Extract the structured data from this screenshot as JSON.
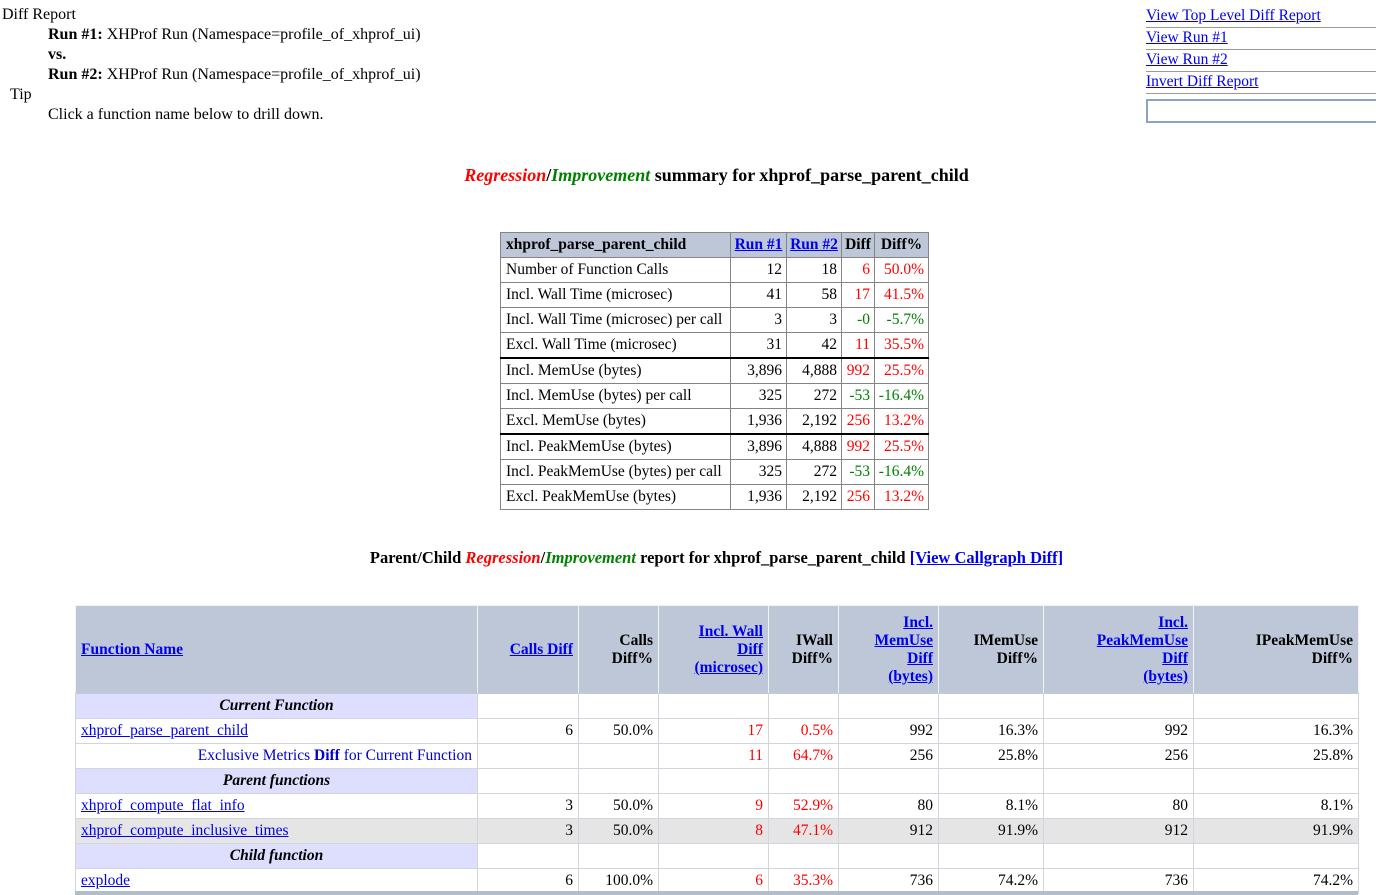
{
  "colors": {
    "link": "#0000EE",
    "red": "#FF0000",
    "green": "#008000",
    "header_bg": "#BDC7D8",
    "section_bg": "#DEDEFF",
    "shade_bg": "#E5E5E5"
  },
  "header": {
    "title": "Diff Report",
    "run1_label": "Run #1:",
    "run1_value": "XHProf Run (Namespace=profile_of_xhprof_ui)",
    "vs": "vs.",
    "run2_label": "Run #2:",
    "run2_value": "XHProf Run (Namespace=profile_of_xhprof_ui)",
    "tip_label": "Tip",
    "tip_value": "Click a function name below to drill down."
  },
  "nav": {
    "links": [
      "View Top Level Diff Report",
      "View Run #1",
      "View Run #2",
      "Invert Diff Report"
    ],
    "search_value": ""
  },
  "summary": {
    "title": {
      "regression": "Regression",
      "slash": "/",
      "improvement": "Improvement",
      "rest": " summary for xhprof_parse_parent_child"
    },
    "table": {
      "corner_label": "xhprof_parse_parent_child",
      "columns": [
        {
          "label": "Run #1",
          "is_link": true
        },
        {
          "label": "Run #2",
          "is_link": true
        },
        {
          "label": "Diff",
          "is_link": false
        },
        {
          "label": "Diff%",
          "is_link": false
        }
      ],
      "rows": [
        {
          "label": "Number of Function Calls",
          "run1": "12",
          "run2": "18",
          "diff": "6",
          "diff_pct": "50.0%",
          "color": "red",
          "group_start": false
        },
        {
          "label": "Incl. Wall Time (microsec)",
          "run1": "41",
          "run2": "58",
          "diff": "17",
          "diff_pct": "41.5%",
          "color": "red",
          "group_start": false
        },
        {
          "label": "Incl. Wall Time (microsec) per call",
          "run1": "3",
          "run2": "3",
          "diff": "-0",
          "diff_pct": "-5.7%",
          "color": "green",
          "group_start": false
        },
        {
          "label": "Excl. Wall Time (microsec)",
          "run1": "31",
          "run2": "42",
          "diff": "11",
          "diff_pct": "35.5%",
          "color": "red",
          "group_start": false
        },
        {
          "label": "Incl. MemUse (bytes)",
          "run1": "3,896",
          "run2": "4,888",
          "diff": "992",
          "diff_pct": "25.5%",
          "color": "red",
          "group_start": true
        },
        {
          "label": "Incl. MemUse (bytes) per call",
          "run1": "325",
          "run2": "272",
          "diff": "-53",
          "diff_pct": "-16.4%",
          "color": "green",
          "group_start": false
        },
        {
          "label": "Excl. MemUse (bytes)",
          "run1": "1,936",
          "run2": "2,192",
          "diff": "256",
          "diff_pct": "13.2%",
          "color": "red",
          "group_start": false
        },
        {
          "label": "Incl. PeakMemUse (bytes)",
          "run1": "3,896",
          "run2": "4,888",
          "diff": "992",
          "diff_pct": "25.5%",
          "color": "red",
          "group_start": true
        },
        {
          "label": "Incl. PeakMemUse (bytes) per call",
          "run1": "325",
          "run2": "272",
          "diff": "-53",
          "diff_pct": "-16.4%",
          "color": "green",
          "group_start": false
        },
        {
          "label": "Excl. PeakMemUse (bytes)",
          "run1": "1,936",
          "run2": "2,192",
          "diff": "256",
          "diff_pct": "13.2%",
          "color": "red",
          "group_start": false
        }
      ]
    }
  },
  "report": {
    "title": {
      "prefix": "Parent/Child ",
      "regression": "Regression",
      "slash": "/",
      "improvement": "Improvement",
      "rest": " report for xhprof_parse_parent_child ",
      "callgraph": "[View Callgraph Diff]"
    },
    "columns": [
      {
        "lines": [
          "Function Name"
        ],
        "is_link": true
      },
      {
        "lines": [
          "Calls Diff"
        ],
        "is_link": true
      },
      {
        "lines": [
          "Calls",
          "Diff%"
        ],
        "is_link": false
      },
      {
        "lines": [
          "Incl. Wall",
          "Diff",
          "(microsec)"
        ],
        "is_link": true
      },
      {
        "lines": [
          "IWall",
          "Diff%"
        ],
        "is_link": false
      },
      {
        "lines": [
          "Incl.",
          "MemUse",
          "Diff",
          "(bytes)"
        ],
        "is_link": true
      },
      {
        "lines": [
          "IMemUse",
          "Diff%"
        ],
        "is_link": false
      },
      {
        "lines": [
          "Incl.",
          "PeakMemUse",
          "Diff",
          "(bytes)"
        ],
        "is_link": true
      },
      {
        "lines": [
          "IPeakMemUse",
          "Diff%"
        ],
        "is_link": false
      }
    ],
    "rows": [
      {
        "type": "section",
        "label": "Current Function"
      },
      {
        "type": "function",
        "name": "xhprof_parse_parent_child",
        "values": [
          "6",
          "50.0%",
          "17",
          "0.5%",
          "992",
          "16.3%",
          "992",
          "16.3%"
        ],
        "red_cols": [
          2,
          3
        ],
        "shaded": false
      },
      {
        "type": "note",
        "parts": [
          "Exclusive Metrics ",
          "Diff",
          " for Current Function"
        ],
        "values": [
          "",
          "",
          "11",
          "64.7%",
          "256",
          "25.8%",
          "256",
          "25.8%"
        ],
        "red_cols": [
          2,
          3
        ],
        "shaded": false
      },
      {
        "type": "section",
        "label": "Parent functions"
      },
      {
        "type": "function",
        "name": "xhprof_compute_flat_info",
        "values": [
          "3",
          "50.0%",
          "9",
          "52.9%",
          "80",
          "8.1%",
          "80",
          "8.1%"
        ],
        "red_cols": [
          2,
          3
        ],
        "shaded": false
      },
      {
        "type": "function",
        "name": "xhprof_compute_inclusive_times",
        "values": [
          "3",
          "50.0%",
          "8",
          "47.1%",
          "912",
          "91.9%",
          "912",
          "91.9%"
        ],
        "red_cols": [
          2,
          3
        ],
        "shaded": true
      },
      {
        "type": "section",
        "label": "Child function"
      },
      {
        "type": "function",
        "name": "explode",
        "values": [
          "6",
          "100.0%",
          "6",
          "35.3%",
          "736",
          "74.2%",
          "736",
          "74.2%"
        ],
        "red_cols": [
          2,
          3
        ],
        "shaded": false
      }
    ]
  }
}
